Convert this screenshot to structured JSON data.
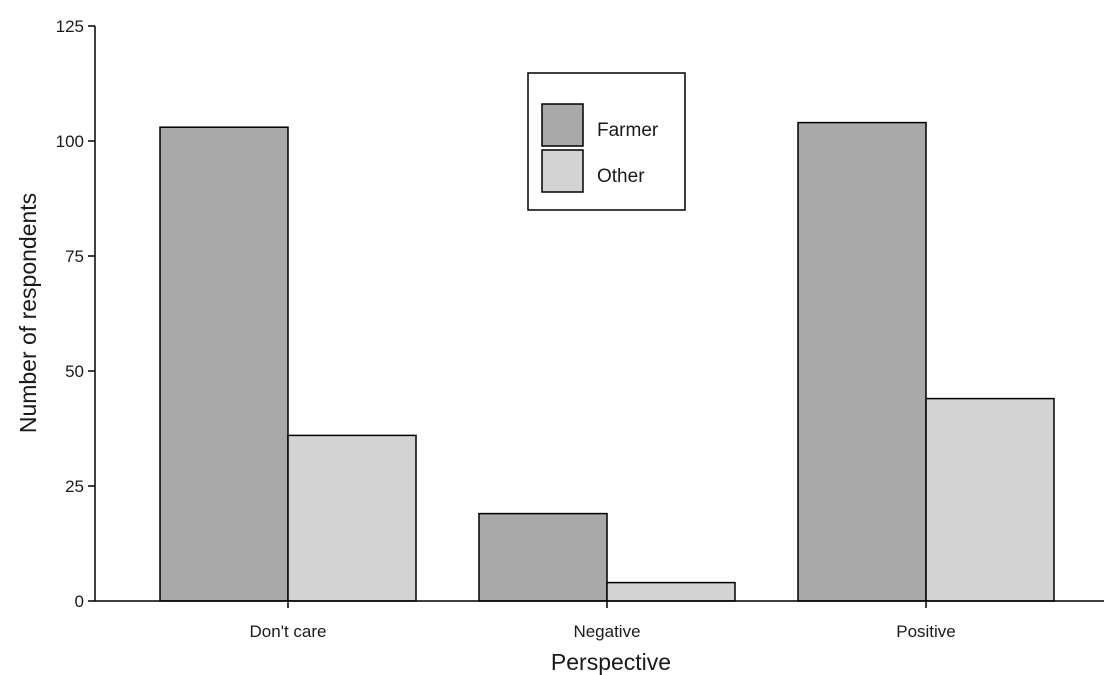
{
  "chart_data": {
    "type": "bar",
    "title": "",
    "xlabel": "Perspective",
    "ylabel": "Number of respondents",
    "categories": [
      "Don't care",
      "Negative",
      "Positive"
    ],
    "series": [
      {
        "name": "Farmer",
        "values": [
          103,
          19,
          104
        ],
        "color": "#a9a9a9"
      },
      {
        "name": "Other",
        "values": [
          36,
          4,
          44
        ],
        "color": "#d3d3d3"
      }
    ],
    "ylim": [
      0,
      125
    ],
    "yticks": [
      0,
      25,
      50,
      75,
      100,
      125
    ],
    "grid": false,
    "legend_position": "top-center"
  }
}
